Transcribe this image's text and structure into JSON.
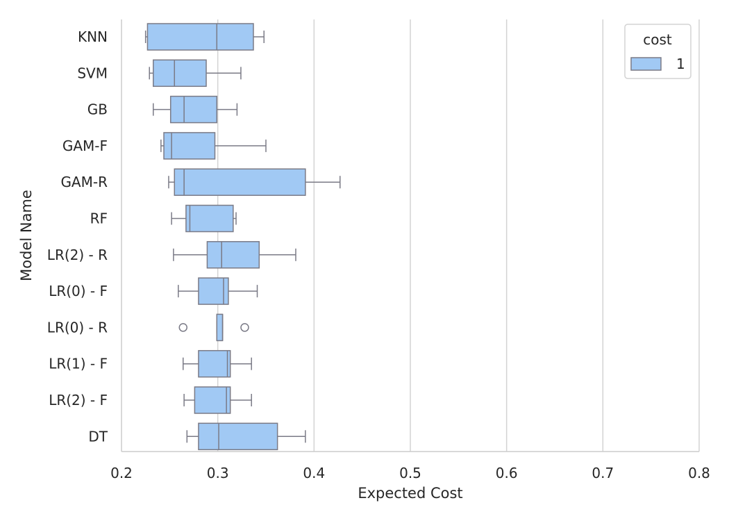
{
  "chart_data": {
    "type": "box",
    "xlabel": "Expected Cost",
    "ylabel": "Model Name",
    "xlim": [
      0.2,
      0.8
    ],
    "x_ticks": [
      {
        "value": 0.2,
        "label": "0.2"
      },
      {
        "value": 0.3,
        "label": "0.3"
      },
      {
        "value": 0.4,
        "label": "0.4"
      },
      {
        "value": 0.5,
        "label": "0.5"
      },
      {
        "value": 0.6,
        "label": "0.6"
      },
      {
        "value": 0.7,
        "label": "0.7"
      },
      {
        "value": 0.8,
        "label": "0.8"
      }
    ],
    "grid": "vertical",
    "legend": {
      "title": "cost",
      "position": "top-right",
      "entries": [
        "1"
      ]
    },
    "colors": {
      "box_fill": "#a1c9f4",
      "box_edge": "#7a7a86",
      "grid": "#d3d3d3",
      "axis": "#cccccc",
      "text": "#262626"
    },
    "categories": [
      "KNN",
      "SVM",
      "GB",
      "GAM-F",
      "GAM-R",
      "RF",
      "LR(2) - R",
      "LR(0) - F",
      "LR(0) - R",
      "LR(1) - F",
      "LR(2) - F",
      "DT"
    ],
    "series": [
      {
        "name": "1",
        "boxes": [
          {
            "whislo": 0.225,
            "q1": 0.227,
            "med": 0.299,
            "q3": 0.337,
            "whishi": 0.348,
            "fliers": []
          },
          {
            "whislo": 0.229,
            "q1": 0.233,
            "med": 0.255,
            "q3": 0.288,
            "whishi": 0.324,
            "fliers": []
          },
          {
            "whislo": 0.233,
            "q1": 0.251,
            "med": 0.265,
            "q3": 0.299,
            "whishi": 0.32,
            "fliers": []
          },
          {
            "whislo": 0.241,
            "q1": 0.244,
            "med": 0.252,
            "q3": 0.297,
            "whishi": 0.35,
            "fliers": []
          },
          {
            "whislo": 0.249,
            "q1": 0.255,
            "med": 0.265,
            "q3": 0.391,
            "whishi": 0.427,
            "fliers": []
          },
          {
            "whislo": 0.252,
            "q1": 0.267,
            "med": 0.271,
            "q3": 0.316,
            "whishi": 0.319,
            "fliers": []
          },
          {
            "whislo": 0.254,
            "q1": 0.289,
            "med": 0.304,
            "q3": 0.343,
            "whishi": 0.381,
            "fliers": []
          },
          {
            "whislo": 0.259,
            "q1": 0.28,
            "med": 0.306,
            "q3": 0.311,
            "whishi": 0.341,
            "fliers": []
          },
          {
            "whislo": 0.299,
            "q1": 0.299,
            "med": 0.305,
            "q3": 0.305,
            "whishi": 0.305,
            "fliers": [
              0.264,
              0.328
            ]
          },
          {
            "whislo": 0.264,
            "q1": 0.28,
            "med": 0.31,
            "q3": 0.313,
            "whishi": 0.335,
            "fliers": []
          },
          {
            "whislo": 0.265,
            "q1": 0.276,
            "med": 0.309,
            "q3": 0.313,
            "whishi": 0.335,
            "fliers": []
          },
          {
            "whislo": 0.268,
            "q1": 0.28,
            "med": 0.301,
            "q3": 0.362,
            "whishi": 0.391,
            "fliers": []
          }
        ]
      }
    ]
  }
}
